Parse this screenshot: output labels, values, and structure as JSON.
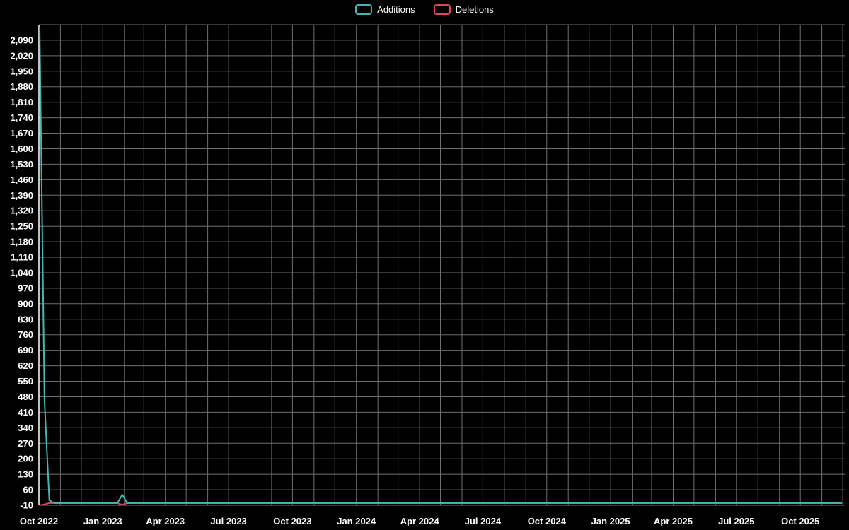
{
  "legend": {
    "items": [
      {
        "label": "Additions",
        "color": "#45b5b5"
      },
      {
        "label": "Deletions",
        "color": "#e0455e"
      }
    ]
  },
  "chart_data": {
    "type": "line",
    "title": "",
    "legend_position": "top-center",
    "grid": true,
    "background_color": "#000000",
    "grid_color": "#6f6f6f",
    "axis_color": "#ffffff",
    "text_color": "#ffffff",
    "x_axis": {
      "start_date": "2022-10-01",
      "end_date": "2025-12-05",
      "gridline_interval": "1 month",
      "gridline_count": 39,
      "tick_labels": [
        {
          "text": "Oct 2022",
          "date": "2022-10-01"
        },
        {
          "text": "Jan 2023",
          "date": "2023-01-01"
        },
        {
          "text": "Apr 2023",
          "date": "2023-04-01"
        },
        {
          "text": "Jul 2023",
          "date": "2023-07-01"
        },
        {
          "text": "Oct 2023",
          "date": "2023-10-01"
        },
        {
          "text": "Jan 2024",
          "date": "2024-01-01"
        },
        {
          "text": "Apr 2024",
          "date": "2024-04-01"
        },
        {
          "text": "Jul 2024",
          "date": "2024-07-01"
        },
        {
          "text": "Oct 2024",
          "date": "2024-10-01"
        },
        {
          "text": "Jan 2025",
          "date": "2025-01-01"
        },
        {
          "text": "Apr 2025",
          "date": "2025-04-01"
        },
        {
          "text": "Jul 2025",
          "date": "2025-07-01"
        },
        {
          "text": "Oct 2025",
          "date": "2025-10-01"
        }
      ]
    },
    "y_axis": {
      "min": -10,
      "max": 2160,
      "step": 70,
      "tick_labels": [
        "-10",
        "60",
        "130",
        "200",
        "270",
        "340",
        "410",
        "480",
        "550",
        "620",
        "690",
        "760",
        "830",
        "900",
        "970",
        "1,040",
        "1,110",
        "1,180",
        "1,250",
        "1,320",
        "1,390",
        "1,460",
        "1,530",
        "1,600",
        "1,670",
        "1,740",
        "1,810",
        "1,880",
        "1,950",
        "2,020",
        "2,090"
      ]
    },
    "series": [
      {
        "name": "Additions",
        "color": "#45b5b5",
        "points": [
          [
            "2022-10-02",
            2150
          ],
          [
            "2022-10-09",
            460
          ],
          [
            "2022-10-16",
            12
          ],
          [
            "2022-10-23",
            0
          ],
          [
            "2023-01-22",
            0
          ],
          [
            "2023-01-29",
            38
          ],
          [
            "2023-02-05",
            0
          ],
          [
            "2025-11-30",
            0
          ]
        ]
      },
      {
        "name": "Deletions",
        "color": "#e0455e",
        "points": [
          [
            "2022-10-02",
            -10
          ],
          [
            "2022-10-09",
            -6
          ],
          [
            "2022-10-16",
            0
          ],
          [
            "2023-01-22",
            0
          ],
          [
            "2023-01-29",
            -8
          ],
          [
            "2023-02-05",
            0
          ],
          [
            "2025-11-30",
            0
          ]
        ]
      }
    ]
  }
}
